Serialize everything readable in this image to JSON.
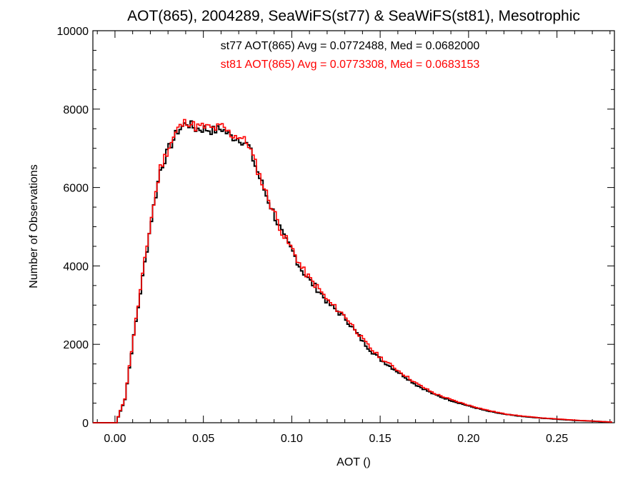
{
  "chart_data": {
    "type": "line",
    "title": "AOT(865), 2004289, SeaWiFS(st77) & SeaWiFS(st81), Mesotrophic",
    "xlabel": "AOT ()",
    "ylabel": "Number of Observations",
    "xlim": [
      -0.0125,
      0.2825
    ],
    "ylim": [
      0,
      10000
    ],
    "x_ticks": [
      0.0,
      0.05,
      0.1,
      0.15,
      0.2,
      0.25
    ],
    "x_tick_labels": [
      "0.00",
      "0.05",
      "0.10",
      "0.15",
      "0.20",
      "0.25"
    ],
    "y_ticks": [
      0,
      2000,
      4000,
      6000,
      8000,
      10000
    ],
    "y_tick_labels": [
      "0",
      "2000",
      "4000",
      "6000",
      "8000",
      "10000"
    ],
    "grid": false,
    "annotations": [
      {
        "text": "st77 AOT(865) Avg = 0.0772488, Med = 0.0682000",
        "color": "#000000"
      },
      {
        "text": "st81 AOT(865) Avg = 0.0773308, Med = 0.0683153",
        "color": "#ff0000"
      }
    ],
    "series": [
      {
        "name": "st77",
        "color": "#000000",
        "x": [
          -0.0125,
          0.0,
          0.005,
          0.01,
          0.015,
          0.02,
          0.025,
          0.03,
          0.035,
          0.04,
          0.045,
          0.05,
          0.055,
          0.06,
          0.065,
          0.07,
          0.075,
          0.08,
          0.085,
          0.09,
          0.095,
          0.1,
          0.105,
          0.11,
          0.115,
          0.12,
          0.125,
          0.13,
          0.135,
          0.14,
          0.145,
          0.15,
          0.16,
          0.17,
          0.18,
          0.19,
          0.2,
          0.21,
          0.22,
          0.23,
          0.24,
          0.25,
          0.26,
          0.27,
          0.28
        ],
        "y": [
          0,
          0,
          600,
          2200,
          3700,
          5200,
          6450,
          7000,
          7450,
          7650,
          7500,
          7500,
          7450,
          7500,
          7300,
          7250,
          7050,
          6400,
          5800,
          5250,
          4700,
          4350,
          3900,
          3600,
          3350,
          3050,
          2850,
          2650,
          2350,
          2050,
          1800,
          1600,
          1280,
          960,
          720,
          560,
          420,
          300,
          215,
          160,
          120,
          90,
          60,
          40,
          15
        ]
      },
      {
        "name": "st81",
        "color": "#ff0000",
        "x": [
          -0.0125,
          0.0,
          0.005,
          0.01,
          0.015,
          0.02,
          0.025,
          0.03,
          0.035,
          0.04,
          0.045,
          0.05,
          0.055,
          0.06,
          0.065,
          0.07,
          0.075,
          0.08,
          0.085,
          0.09,
          0.095,
          0.1,
          0.105,
          0.11,
          0.115,
          0.12,
          0.125,
          0.13,
          0.135,
          0.14,
          0.145,
          0.15,
          0.16,
          0.17,
          0.18,
          0.19,
          0.2,
          0.21,
          0.22,
          0.23,
          0.24,
          0.25,
          0.26,
          0.27,
          0.28
        ],
        "y": [
          0,
          0,
          620,
          2250,
          3750,
          5250,
          6500,
          7050,
          7500,
          7700,
          7550,
          7550,
          7500,
          7550,
          7350,
          7300,
          7100,
          6450,
          5850,
          5300,
          4750,
          4400,
          3950,
          3650,
          3400,
          3100,
          2900,
          2700,
          2400,
          2100,
          1850,
          1650,
          1320,
          1000,
          750,
          580,
          440,
          320,
          225,
          170,
          125,
          95,
          65,
          42,
          18
        ]
      }
    ]
  }
}
